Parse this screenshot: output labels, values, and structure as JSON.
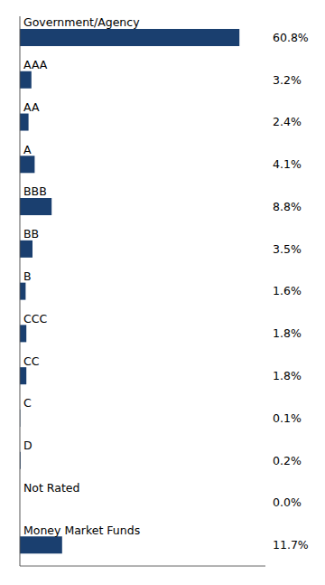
{
  "chart_data": {
    "type": "bar",
    "orientation": "horizontal",
    "categories": [
      "Government/Agency",
      "AAA",
      "AA",
      "A",
      "BBB",
      "BB",
      "B",
      "CCC",
      "CC",
      "C",
      "D",
      "Not Rated",
      "Money Market Funds"
    ],
    "values": [
      60.8,
      3.2,
      2.4,
      4.1,
      8.8,
      3.5,
      1.6,
      1.8,
      1.8,
      0.1,
      0.2,
      0.0,
      11.7
    ],
    "value_labels": [
      "60.8%",
      "3.2%",
      "2.4%",
      "4.1%",
      "8.8%",
      "3.5%",
      "1.6%",
      "1.8%",
      "1.8%",
      "0.1%",
      "0.2%",
      "0.0%",
      "11.7%"
    ],
    "color": "#1a3f6f",
    "xlim": [
      0,
      68
    ],
    "data_labels": true,
    "tick_labels": false,
    "grid": false
  }
}
